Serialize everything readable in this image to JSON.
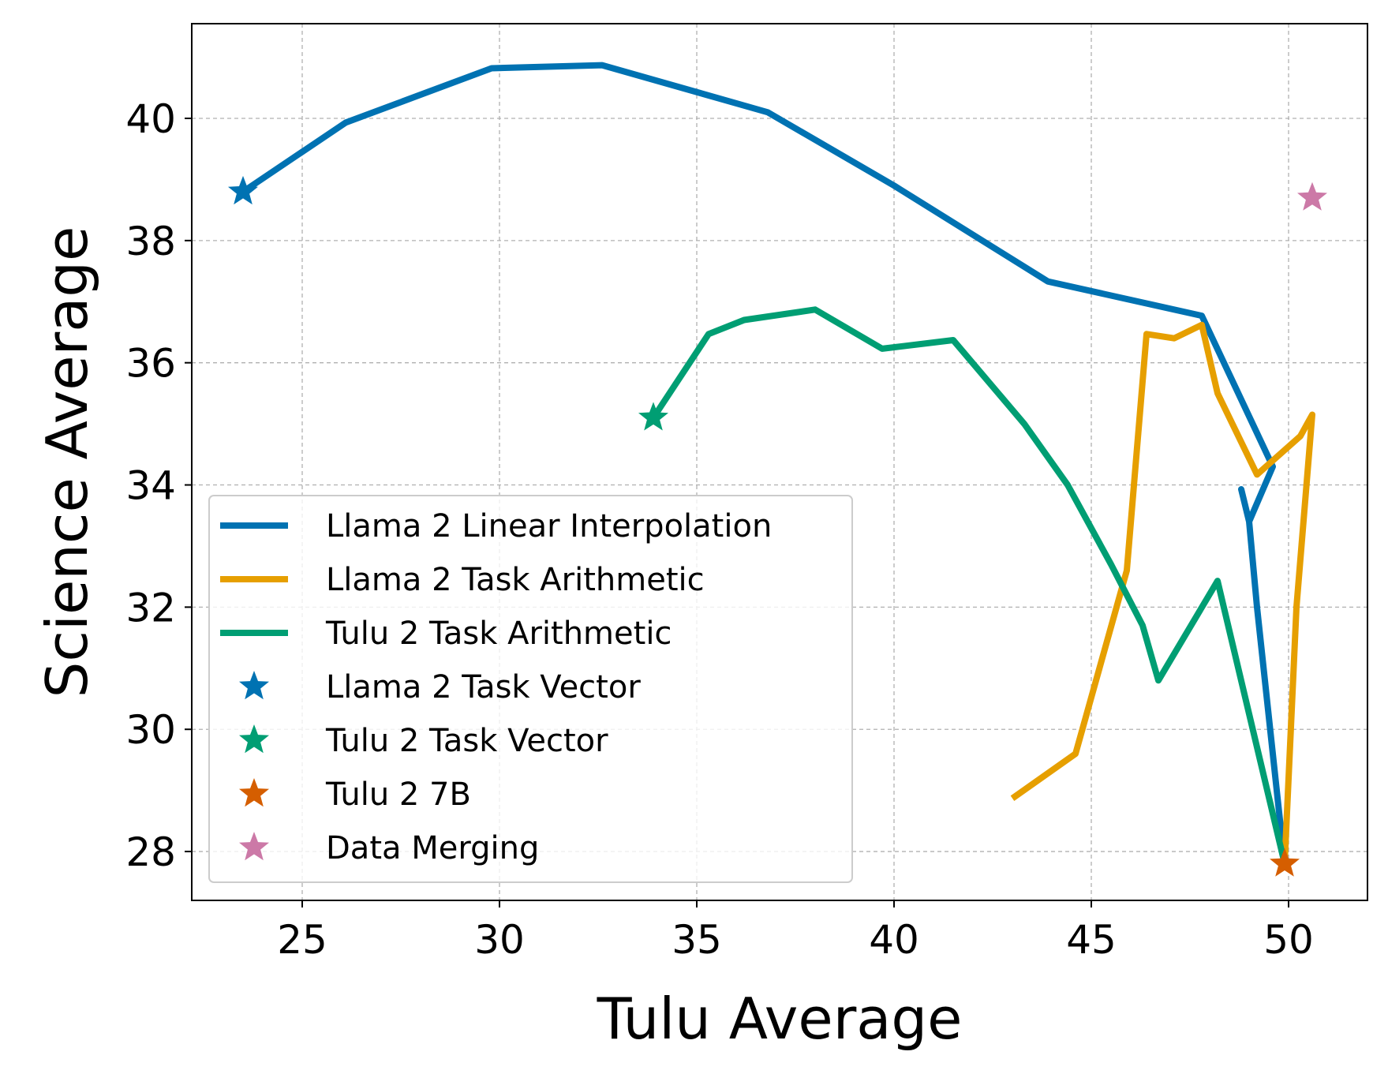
{
  "chart_data": {
    "type": "line",
    "title": "",
    "xlabel": "Tulu Average",
    "ylabel": "Science Average",
    "xlim": [
      22.2,
      52.0
    ],
    "ylim": [
      27.2,
      41.55
    ],
    "xticks": [
      25,
      30,
      35,
      40,
      45,
      50
    ],
    "yticks": [
      28,
      30,
      32,
      34,
      36,
      38,
      40
    ],
    "grid": true,
    "legend_position": "lower-left",
    "series": [
      {
        "name": "Llama 2 Linear Interpolation",
        "kind": "line",
        "color": "#0072B2",
        "x": [
          23.5,
          26.1,
          29.8,
          32.6,
          36.8,
          40.0,
          43.9,
          47.8,
          49.6,
          49.0,
          48.8,
          49.0,
          49.2,
          49.9
        ],
        "y": [
          38.8,
          39.93,
          40.82,
          40.87,
          40.1,
          38.9,
          37.33,
          36.77,
          34.3,
          33.4,
          33.93,
          33.4,
          32.0,
          27.8
        ]
      },
      {
        "name": "Llama 2 Task Arithmetic",
        "kind": "line",
        "color": "#E69F00",
        "x": [
          43.0,
          44.6,
          45.9,
          46.4,
          47.1,
          47.8,
          48.2,
          49.2,
          50.3,
          50.6,
          50.2,
          49.9
        ],
        "y": [
          28.87,
          29.6,
          32.6,
          36.47,
          36.4,
          36.62,
          35.5,
          34.17,
          34.8,
          35.15,
          32.0,
          27.8
        ]
      },
      {
        "name": "Tulu 2 Task Arithmetic",
        "kind": "line",
        "color": "#009E73",
        "x": [
          33.9,
          35.3,
          36.2,
          38.0,
          39.7,
          41.5,
          43.3,
          44.4,
          45.5,
          46.3,
          46.7,
          48.2,
          49.9
        ],
        "y": [
          35.1,
          36.47,
          36.7,
          36.87,
          36.23,
          36.37,
          35.0,
          34.0,
          32.7,
          31.7,
          30.8,
          32.43,
          27.8
        ]
      },
      {
        "name": "Llama 2 Task Vector",
        "kind": "star",
        "color": "#0072B2",
        "x": [
          23.5
        ],
        "y": [
          38.8
        ]
      },
      {
        "name": "Tulu 2 Task Vector",
        "kind": "star",
        "color": "#009E73",
        "x": [
          33.9
        ],
        "y": [
          35.1
        ]
      },
      {
        "name": "Tulu 2 7B",
        "kind": "star",
        "color": "#D55E00",
        "x": [
          49.9
        ],
        "y": [
          27.8
        ]
      },
      {
        "name": "Data Merging",
        "kind": "star",
        "color": "#CC79A7",
        "x": [
          50.6
        ],
        "y": [
          38.7
        ]
      }
    ]
  }
}
